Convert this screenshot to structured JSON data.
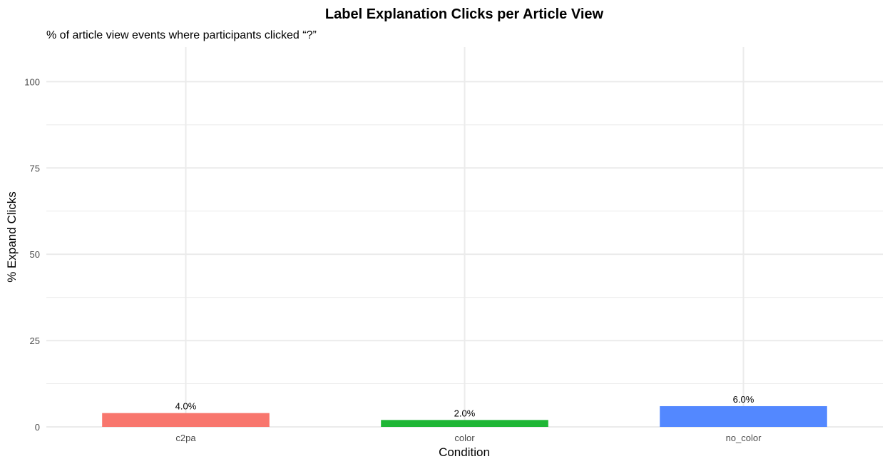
{
  "chart_data": {
    "type": "bar",
    "title": "Label Explanation Clicks per Article View",
    "subtitle": "% of article view events where participants clicked “?”",
    "xlabel": "Condition",
    "ylabel": "% Expand Clicks",
    "categories": [
      "c2pa",
      "color",
      "no_color"
    ],
    "values": [
      4.0,
      2.0,
      6.0
    ],
    "value_labels": [
      "4.0%",
      "2.0%",
      "6.0%"
    ],
    "colors": [
      "#F8766D",
      "#1FB635",
      "#5388FF"
    ],
    "ylim": [
      0,
      110
    ],
    "yticks": [
      0,
      25,
      50,
      75,
      100
    ],
    "grid": true,
    "legend": "none"
  }
}
